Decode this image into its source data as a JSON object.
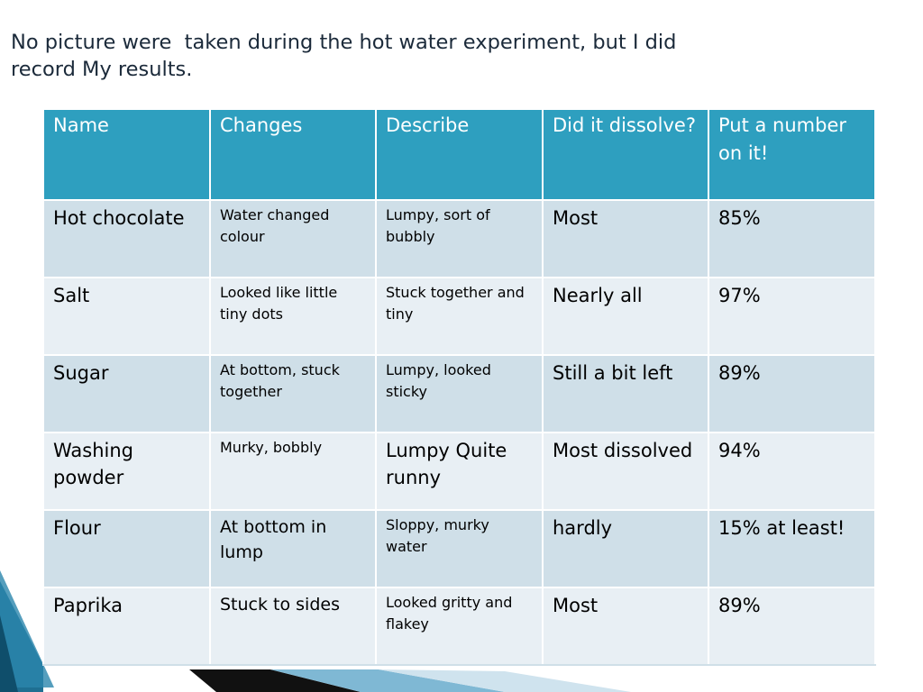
{
  "title": "No picture were  taken during the hot water experiment, but I did\nrecord My results.",
  "table": {
    "headers": [
      "Name",
      "Changes",
      "Describe",
      "Did it dissolve?",
      "Put a number on it!"
    ],
    "rows": [
      {
        "name": "Hot chocolate",
        "changes": "Water changed colour",
        "describe": "Lumpy, sort of bubbly",
        "dissolve": "Most",
        "number": "85%"
      },
      {
        "name": "Salt",
        "changes": "Looked like little tiny dots",
        "describe": "Stuck together and tiny",
        "dissolve": "Nearly all",
        "number": "97%"
      },
      {
        "name": "Sugar",
        "changes": "At bottom, stuck together",
        "describe": "Lumpy, looked sticky",
        "dissolve": "Still a bit left",
        "number": "89%"
      },
      {
        "name": "Washing powder",
        "changes": "Murky, bobbly",
        "describe": "Lumpy Quite runny",
        "dissolve": "Most dissolved",
        "number": "94%"
      },
      {
        "name": "Flour",
        "changes": "At bottom in lump",
        "describe": "Sloppy, murky water",
        "dissolve": "hardly",
        "number": "15% at least!"
      },
      {
        "name": "Paprika",
        "changes": "Stuck to sides",
        "describe": "Looked gritty and flakey",
        "dissolve": "Most",
        "number": "89%"
      }
    ]
  },
  "colors": {
    "header_bg": "#2e9fbf",
    "row_dark": "#cfdfe8",
    "row_light": "#e8eff4",
    "swoosh_blue": "#1f6f92",
    "swoosh_black": "#111111"
  },
  "icons": [
    "slide-corner-swoosh"
  ]
}
